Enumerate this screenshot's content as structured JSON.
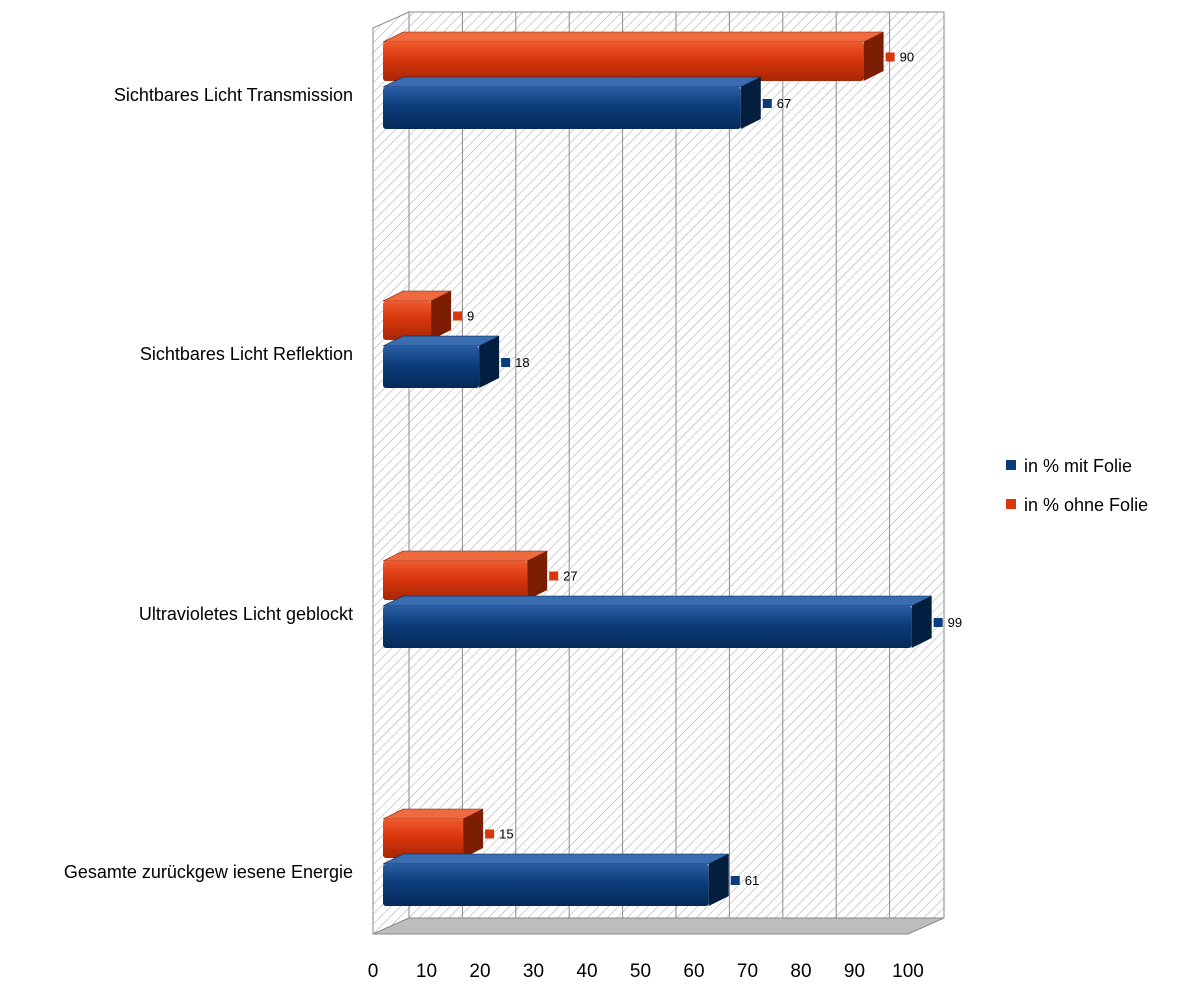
{
  "chart_data": {
    "type": "bar",
    "orientation": "horizontal",
    "style": "3d",
    "categories": [
      "Sichtbares Licht Transmission",
      "Sichtbares Licht Reflektion",
      "Ultravioletes Licht geblockt",
      "Gesamte zurückgew iesene Energie"
    ],
    "series": [
      {
        "name": "in % ohne Folie",
        "color": "#D9360C",
        "values": [
          90,
          9,
          27,
          15
        ]
      },
      {
        "name": "in % mit Folie",
        "color": "#0B3C7A",
        "values": [
          67,
          18,
          99,
          61
        ]
      }
    ],
    "x_ticks": [
      "0",
      "10",
      "20",
      "30",
      "40",
      "50",
      "60",
      "70",
      "80",
      "90",
      "100"
    ],
    "xlim": [
      0,
      100
    ],
    "grid": true,
    "legend_position": "right",
    "legend": [
      "in % mit Folie",
      "in % ohne Folie"
    ],
    "value_labels": [
      [
        "90",
        "9",
        "27",
        "15"
      ],
      [
        "67",
        "18",
        "99",
        "61"
      ]
    ]
  }
}
